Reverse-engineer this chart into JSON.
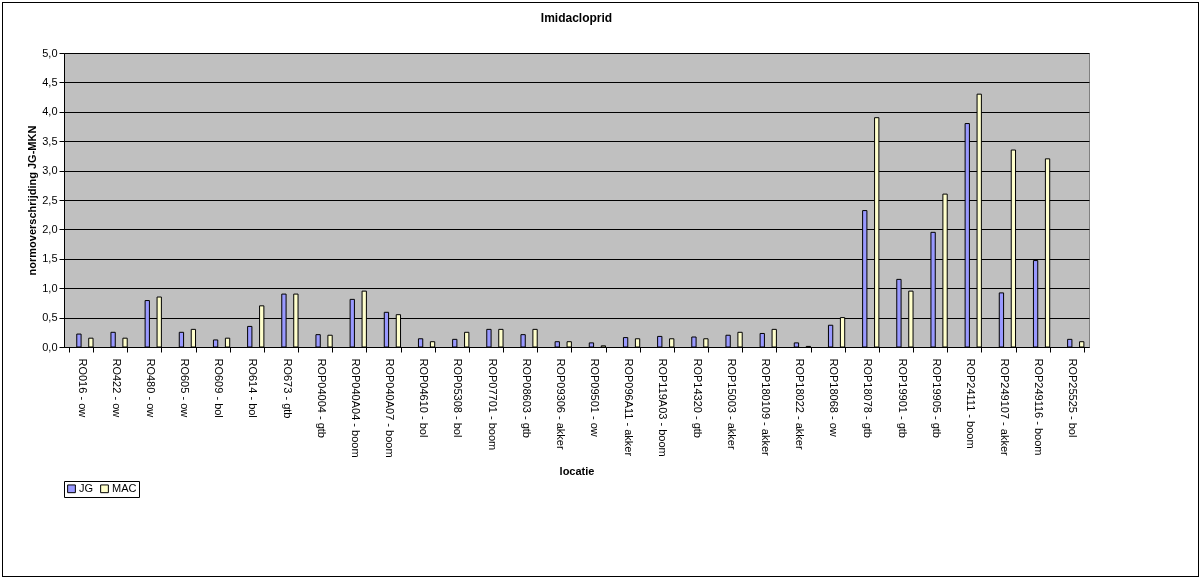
{
  "chart_data": {
    "type": "bar",
    "title": "Imidacloprid",
    "xlabel": "locatie",
    "ylabel": "normoverschrijding JG-MKN",
    "categories": [
      "RO016 - ow",
      "RO422 - ow",
      "RO480 - ow",
      "RO605 - ow",
      "RO609 - bol",
      "RO614 - bol",
      "RO673 - gtb",
      "ROP04004 - gtb",
      "ROP040A04 - boom",
      "ROP040A07 - boom",
      "ROP04610 - bol",
      "ROP05308 - bol",
      "ROP07701 - boom",
      "ROP08603 - gtb",
      "ROP09306 - akker",
      "ROP09501 - ow",
      "ROP096A11 - akker",
      "ROP119A03 - boom",
      "ROP14320 - gtb",
      "ROP15003 - akker",
      "ROP180109 - akker",
      "ROP18022 - akker",
      "ROP18068 - ow",
      "ROP18078 - gtb",
      "ROP19901 - gtb",
      "ROP19905 - gtb",
      "ROP24111 - boom",
      "ROP249107 - akker",
      "ROP249116 - boom",
      "ROP25525 - bol"
    ],
    "series": [
      {
        "name": "JG",
        "color": "#9999ff",
        "values": [
          0.22,
          0.25,
          0.79,
          0.25,
          0.12,
          0.35,
          0.9,
          0.21,
          0.81,
          0.59,
          0.14,
          0.13,
          0.3,
          0.21,
          0.09,
          0.07,
          0.16,
          0.18,
          0.17,
          0.2,
          0.23,
          0.07,
          0.37,
          2.32,
          1.15,
          1.95,
          3.8,
          0.92,
          1.47,
          0.13
        ]
      },
      {
        "name": "MAC",
        "color": "#ffffcc",
        "values": [
          0.15,
          0.15,
          0.85,
          0.3,
          0.15,
          0.7,
          0.9,
          0.2,
          0.95,
          0.55,
          0.09,
          0.25,
          0.3,
          0.3,
          0.09,
          0.02,
          0.14,
          0.14,
          0.14,
          0.25,
          0.3,
          0.01,
          0.5,
          3.9,
          0.95,
          2.6,
          4.3,
          3.35,
          3.2,
          0.09
        ]
      }
    ],
    "ylim": [
      0,
      5
    ],
    "yticks": [
      {
        "value": 0,
        "label": "0,0"
      },
      {
        "value": 0.5,
        "label": "0,5"
      },
      {
        "value": 1,
        "label": "1,0"
      },
      {
        "value": 1.5,
        "label": "1,5"
      },
      {
        "value": 2,
        "label": "2,0"
      },
      {
        "value": 2.5,
        "label": "2,5"
      },
      {
        "value": 3,
        "label": "3,0"
      },
      {
        "value": 3.5,
        "label": "3,5"
      },
      {
        "value": 4,
        "label": "4,0"
      },
      {
        "value": 4.5,
        "label": "4,5"
      },
      {
        "value": 5,
        "label": "5,0"
      }
    ],
    "grid": "y",
    "legend": "bottom"
  }
}
